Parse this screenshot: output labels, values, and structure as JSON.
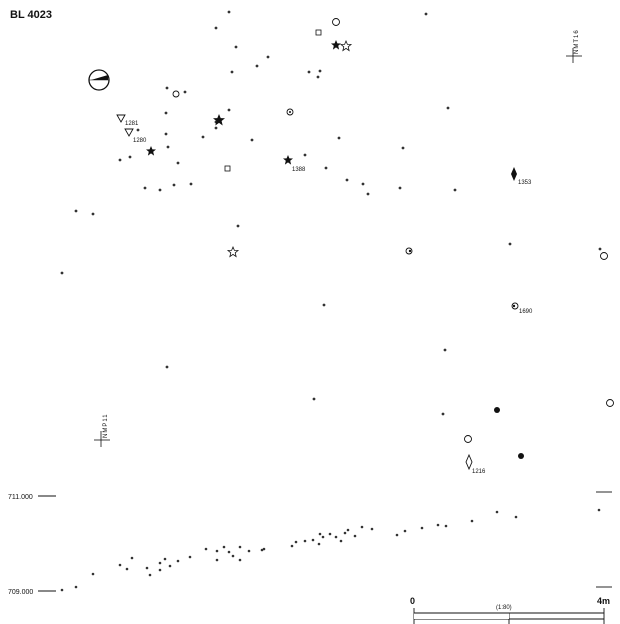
{
  "title": "BL 4023",
  "grid_labels": {
    "top_right": "NMT16",
    "left": "NMP11"
  },
  "point_labels": [
    {
      "key": "t1",
      "text": "1281"
    },
    {
      "key": "t2",
      "text": "1280"
    },
    {
      "key": "s1",
      "text": "1388"
    },
    {
      "key": "d1",
      "text": "1353"
    },
    {
      "key": "c1",
      "text": "1690"
    },
    {
      "key": "d2",
      "text": "1216"
    }
  ],
  "elevations": {
    "upper": "711.000",
    "lower": "709.000"
  },
  "scale_bar": {
    "start": "0",
    "ratio": "(1:80)",
    "end": "4m"
  },
  "colors": {
    "ink": "#111111",
    "faint": "#555555"
  },
  "icons": [
    "north-arrow-icon",
    "filled-star-icon",
    "open-star-icon",
    "open-circle-icon",
    "filled-circle-icon",
    "square-icon",
    "triangle-icon",
    "diamond-icon",
    "ring-icon"
  ]
}
